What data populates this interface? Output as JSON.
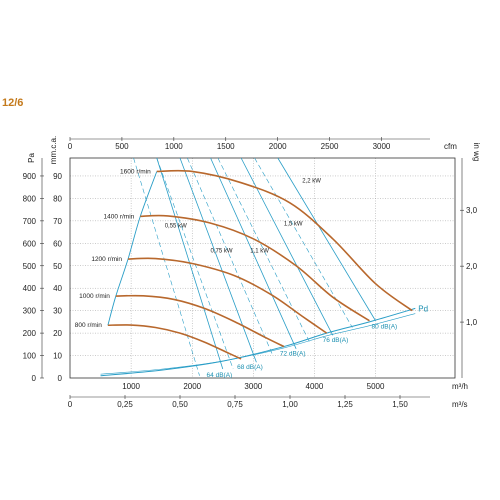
{
  "model_label": "12/6",
  "colors": {
    "speed_curve": "#b8682d",
    "iso_line": "#2a9ec7",
    "grid": "#9a9a9a",
    "axis": "#333333",
    "model": "#c47a1c"
  },
  "chart_data": {
    "type": "line",
    "x_axis_bottom": {
      "unit": "m³/h",
      "ticks": [
        "1000",
        "2000",
        "3000",
        "4000",
        "5000"
      ],
      "lim": [
        0,
        6300
      ]
    },
    "x_axis_bottom2": {
      "unit": "m³/s",
      "ticks": [
        "0",
        "0,25",
        "0,50",
        "0,75",
        "1,00",
        "1,25",
        "1,50"
      ]
    },
    "x_axis_top": {
      "unit": "cfm",
      "ticks": [
        "0",
        "500",
        "1000",
        "1500",
        "2000",
        "2500",
        "3000"
      ]
    },
    "y_axis_left": {
      "unit": "Pa",
      "ticks": [
        "0",
        "100",
        "200",
        "300",
        "400",
        "500",
        "600",
        "700",
        "800",
        "900"
      ],
      "lim": [
        0,
        980
      ]
    },
    "y_axis_left2": {
      "unit": "mm.c.a.",
      "ticks": [
        "0",
        "10",
        "20",
        "30",
        "40",
        "50",
        "60",
        "70",
        "80",
        "90"
      ]
    },
    "y_axis_right": {
      "unit": "in wg",
      "ticks": [
        "1,0",
        "2,0",
        "3,0"
      ]
    },
    "speed_series": [
      {
        "name": "1600 r/min",
        "x": [
          1420,
          2000,
          2800,
          3600,
          4300,
          5000,
          5600
        ],
        "y": [
          920,
          920,
          870,
          780,
          620,
          420,
          300
        ]
      },
      {
        "name": "1400 r/min",
        "x": [
          1150,
          1600,
          2300,
          3000,
          3700,
          4300,
          4900
        ],
        "y": [
          720,
          722,
          690,
          620,
          500,
          360,
          255
        ]
      },
      {
        "name": "1200 r/min",
        "x": [
          950,
          1400,
          2000,
          2700,
          3300,
          3800,
          4200
        ],
        "y": [
          530,
          532,
          510,
          455,
          370,
          275,
          200
        ]
      },
      {
        "name": "1000 r/min",
        "x": [
          750,
          1200,
          1700,
          2200,
          2700,
          3200,
          3500
        ],
        "y": [
          365,
          366,
          350,
          310,
          250,
          180,
          140
        ]
      },
      {
        "name": "800 r/min",
        "x": [
          620,
          1000,
          1400,
          1800,
          2200,
          2600,
          2800
        ],
        "y": [
          235,
          236,
          225,
          200,
          160,
          110,
          85
        ]
      }
    ],
    "system_curve": {
      "name": "Pd",
      "x": [
        500,
        1500,
        2500,
        3500,
        4200,
        4900,
        5650
      ],
      "y": [
        10,
        35,
        75,
        140,
        200,
        250,
        310
      ]
    },
    "left_envelope": {
      "x": [
        1420,
        1150,
        950,
        750,
        620
      ],
      "y": [
        920,
        720,
        530,
        365,
        235
      ]
    },
    "power_labels": [
      "0,55 kW",
      "0,75 kW",
      "1,1 kW",
      "1,5 kW",
      "2,2 kW"
    ],
    "noise_labels": [
      "64 dB(A)",
      "68 dB(A)",
      "72 dB(A)",
      "76 dB(A)",
      "80 dB(A)"
    ],
    "noise_points": [
      {
        "label": "64 dB(A)",
        "x": 2300,
        "y": 45
      },
      {
        "label": "68 dB(A)",
        "x": 2800,
        "y": 80
      },
      {
        "label": "72 dB(A)",
        "x": 3500,
        "y": 140
      },
      {
        "label": "76 dB(A)",
        "x": 4200,
        "y": 200
      },
      {
        "label": "80 dB(A)",
        "x": 5000,
        "y": 260
      }
    ],
    "grid": true
  }
}
